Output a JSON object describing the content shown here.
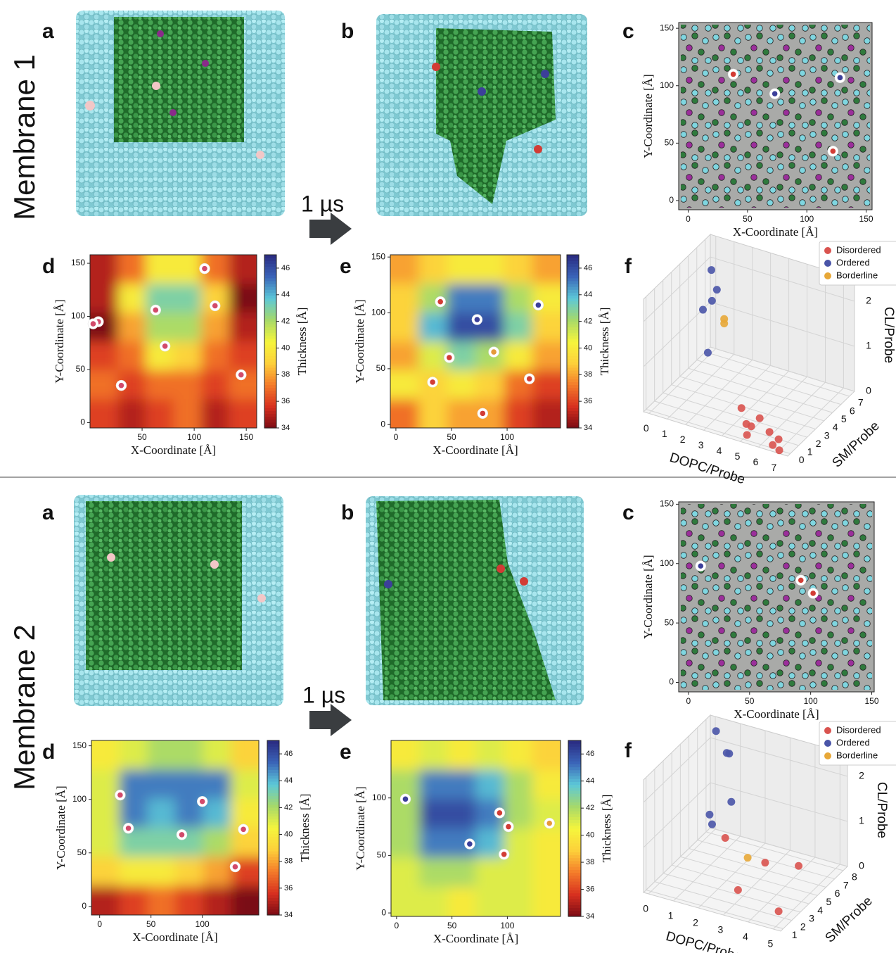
{
  "membranes": [
    {
      "label": "Membrane 1",
      "arrow_label": "1 µs",
      "panel_a": "a",
      "panel_b": "b"
    },
    {
      "label": "Membrane 2",
      "arrow_label": "1 µs",
      "panel_a": "a",
      "panel_b": "b"
    }
  ],
  "chart_data": [
    {
      "type": "scatter",
      "panel": "c",
      "xlabel": "X-Coordinate [Å]",
      "ylabel": "Y-Coordinate [Å]",
      "xlim": [
        -8,
        155
      ],
      "ylim": [
        -8,
        155
      ],
      "xticks": [
        0,
        50,
        100,
        150
      ],
      "yticks": [
        0,
        50,
        100,
        150
      ],
      "series": [
        {
          "color": "#d23c35",
          "x": [
            38,
            122
          ],
          "y": [
            110,
            43
          ]
        },
        {
          "color": "#3c3f9a",
          "x": [
            73,
            128
          ],
          "y": [
            93,
            107
          ]
        }
      ]
    },
    {
      "type": "contour",
      "panel": "d",
      "xlabel": "X-Coordinate [Å]",
      "ylabel": "Y-Coordinate [Å]",
      "xlim": [
        0,
        160
      ],
      "ylim": [
        -5,
        158
      ],
      "xticks": [
        50,
        100,
        150
      ],
      "yticks": [
        0,
        50,
        100,
        150
      ],
      "colorbar_label": "Thickness [Å]",
      "clim": [
        34,
        47
      ],
      "cticks": [
        34,
        36,
        38,
        40,
        42,
        44,
        46
      ],
      "colormap": [
        "#7a0a14",
        "#d7301f",
        "#f47b2a",
        "#fdd03a",
        "#f5f53c",
        "#a6d96a",
        "#5cc8d8",
        "#3a64b8",
        "#2a2a80"
      ],
      "grid": [
        [
          35,
          37,
          40,
          40,
          37,
          35
        ],
        [
          35,
          40,
          43,
          43,
          39,
          34
        ],
        [
          34,
          38,
          42,
          42,
          38,
          35
        ],
        [
          36,
          37,
          40,
          39,
          37,
          36
        ],
        [
          37,
          36,
          37,
          37,
          36,
          37
        ],
        [
          36,
          35,
          36,
          37,
          35,
          36
        ]
      ],
      "series": [
        {
          "color": "#d24a6a",
          "x": [
            63,
            110,
            120,
            8,
            3,
            72,
            30,
            145
          ],
          "y": [
            106,
            145,
            110,
            95,
            93,
            72,
            35,
            45
          ]
        }
      ]
    },
    {
      "type": "contour",
      "panel": "e",
      "xlabel": "X-Coordinate [Å]",
      "ylabel": "Y-Coordinate [Å]",
      "xlim": [
        -5,
        148
      ],
      "ylim": [
        -3,
        152
      ],
      "xticks": [
        0,
        50,
        100
      ],
      "yticks": [
        0,
        50,
        100,
        150
      ],
      "colorbar_label": "Thickness [Å]",
      "clim": [
        34,
        47
      ],
      "cticks": [
        34,
        36,
        38,
        40,
        42,
        44,
        46
      ],
      "colormap": [
        "#7a0a14",
        "#d7301f",
        "#f47b2a",
        "#fdd03a",
        "#f5f53c",
        "#a6d96a",
        "#5cc8d8",
        "#3a64b8",
        "#2a2a80"
      ],
      "grid": [
        [
          38,
          39,
          40,
          40,
          39,
          38
        ],
        [
          39,
          42,
          45,
          45,
          42,
          40
        ],
        [
          39,
          44,
          46,
          46,
          43,
          39
        ],
        [
          38,
          41,
          43,
          42,
          40,
          38
        ],
        [
          40,
          39,
          40,
          39,
          37,
          36
        ],
        [
          37,
          39,
          38,
          38,
          36,
          35
        ]
      ],
      "series": [
        {
          "color": "#d23c35",
          "x": [
            40,
            48,
            33,
            78,
            120
          ],
          "y": [
            110,
            60,
            38,
            10,
            41
          ]
        },
        {
          "color": "#3c3f9a",
          "x": [
            73,
            128
          ],
          "y": [
            94,
            107
          ]
        },
        {
          "color": "#e59a3a",
          "x": [
            88
          ],
          "y": [
            65
          ]
        }
      ]
    },
    {
      "type": "scatter3d",
      "panel": "f",
      "xlabel": "DOPC/Probe",
      "ylabel": "SM/Probe",
      "zlabel": "CL/Probe",
      "xlim": [
        -0.3,
        7.6
      ],
      "ylim": [
        -0.3,
        7.6
      ],
      "zlim": [
        0,
        2.5
      ],
      "xticks": [
        0,
        1,
        2,
        3,
        4,
        5,
        6,
        7
      ],
      "yticks": [
        0,
        1,
        2,
        3,
        4,
        5,
        6,
        7
      ],
      "zticks": [
        0,
        1,
        2
      ],
      "series": [
        {
          "name": "Disordered",
          "color": "#d9534f",
          "x": [
            4,
            5,
            5,
            4.5,
            5,
            6,
            6.5,
            7,
            6.5
          ],
          "y": [
            2,
            2,
            1,
            1.5,
            0.5,
            1,
            1,
            0,
            0.3
          ],
          "z": [
            0.2,
            0.1,
            0.1,
            0,
            0,
            0.1,
            0,
            0,
            0
          ]
        },
        {
          "name": "Ordered",
          "color": "#4a55a8",
          "x": [
            0.5,
            0.3,
            0.5,
            0.8,
            1
          ],
          "y": [
            6,
            6.5,
            5,
            6,
            4.5
          ],
          "z": [
            2.1,
            1.3,
            1.4,
            1.7,
            0.6
          ]
        },
        {
          "name": "Borderline",
          "color": "#e8a838",
          "x": [
            1.2,
            1.2
          ],
          "y": [
            6,
            6
          ],
          "z": [
            1.0,
            1.1
          ]
        }
      ]
    },
    {
      "type": "scatter",
      "panel": "c",
      "xlabel": "X-Coordinate [Å]",
      "ylabel": "Y-Coordinate [Å]",
      "xlim": [
        -8,
        152
      ],
      "ylim": [
        -8,
        152
      ],
      "xticks": [
        0,
        50,
        100,
        150
      ],
      "yticks": [
        0,
        50,
        100,
        150
      ],
      "series": [
        {
          "color": "#3c3f9a",
          "x": [
            10
          ],
          "y": [
            98
          ]
        },
        {
          "color": "#d23c35",
          "x": [
            92,
            102
          ],
          "y": [
            86,
            75
          ]
        }
      ]
    },
    {
      "type": "contour",
      "panel": "d",
      "xlabel": "X-Coordinate [Å]",
      "ylabel": "Y-Coordinate [Å]",
      "xlim": [
        -8,
        155
      ],
      "ylim": [
        -8,
        155
      ],
      "xticks": [
        0,
        50,
        100
      ],
      "yticks": [
        0,
        50,
        100,
        150
      ],
      "colorbar_label": "Thickness [Å]",
      "clim": [
        34,
        47
      ],
      "cticks": [
        34,
        36,
        38,
        40,
        42,
        44,
        46
      ],
      "colormap": [
        "#7a0a14",
        "#d7301f",
        "#f47b2a",
        "#fdd03a",
        "#f5f53c",
        "#a6d96a",
        "#5cc8d8",
        "#3a64b8",
        "#2a2a80"
      ],
      "grid": [
        [
          40,
          41,
          42,
          42,
          41,
          39
        ],
        [
          41,
          45,
          45,
          45,
          45,
          41
        ],
        [
          41,
          45,
          44,
          45,
          44,
          40
        ],
        [
          41,
          43,
          43,
          43,
          42,
          39
        ],
        [
          39,
          40,
          40,
          39,
          38,
          36
        ],
        [
          35,
          36,
          37,
          36,
          35,
          34
        ]
      ],
      "series": [
        {
          "color": "#d24a6a",
          "x": [
            20,
            28,
            100,
            80,
            140,
            132
          ],
          "y": [
            104,
            73,
            98,
            67,
            72,
            37
          ]
        }
      ]
    },
    {
      "type": "contour",
      "panel": "e",
      "xlabel": "X-Coordinate [Å]",
      "ylabel": "Y-Coordinate [Å]",
      "xlim": [
        -5,
        148
      ],
      "ylim": [
        -3,
        150
      ],
      "xticks": [
        0,
        50,
        100
      ],
      "yticks": [
        0,
        50,
        100
      ],
      "colorbar_label": "Thickness [Å]",
      "clim": [
        34,
        47
      ],
      "cticks": [
        34,
        36,
        38,
        40,
        42,
        44,
        46
      ],
      "colormap": [
        "#7a0a14",
        "#d7301f",
        "#f47b2a",
        "#fdd03a",
        "#f5f53c",
        "#a6d96a",
        "#5cc8d8",
        "#3a64b8",
        "#2a2a80"
      ],
      "grid": [
        [
          40,
          41,
          40,
          41,
          40,
          39
        ],
        [
          42,
          45,
          45,
          44,
          42,
          40
        ],
        [
          42,
          46,
          46,
          45,
          42,
          41
        ],
        [
          42,
          45,
          45,
          44,
          41,
          40
        ],
        [
          41,
          42,
          42,
          41,
          41,
          40
        ],
        [
          41,
          41,
          40,
          41,
          41,
          40
        ]
      ],
      "series": [
        {
          "color": "#3c3f9a",
          "x": [
            8,
            66
          ],
          "y": [
            99,
            60
          ]
        },
        {
          "color": "#d23c35",
          "x": [
            93,
            101,
            97
          ],
          "y": [
            87,
            75,
            51
          ]
        },
        {
          "color": "#e59a3a",
          "x": [
            138
          ],
          "y": [
            78
          ]
        }
      ]
    },
    {
      "type": "scatter3d",
      "panel": "f",
      "xlabel": "DOPC/Probe",
      "ylabel": "SM/Probe",
      "zlabel": "CL/Probe",
      "xlim": [
        -0.2,
        5.3
      ],
      "ylim": [
        0.7,
        8.5
      ],
      "zlim": [
        0,
        2.5
      ],
      "xticks": [
        0,
        1,
        2,
        3,
        4,
        5
      ],
      "yticks": [
        1,
        2,
        3,
        4,
        5,
        6,
        7,
        8
      ],
      "zticks": [
        0,
        1,
        2
      ],
      "series": [
        {
          "name": "Disordered",
          "color": "#d9534f",
          "x": [
            1.6,
            3.2,
            4.2,
            2.8,
            4.6
          ],
          "y": [
            5,
            5,
            6,
            3,
            2.5
          ],
          "z": [
            0.7,
            0.4,
            0.3,
            0.1,
            0
          ]
        },
        {
          "name": "Ordered",
          "color": "#4a55a8",
          "x": [
            0.2,
            0.8,
            0.9,
            1.5,
            0.8,
            0.9
          ],
          "y": [
            8,
            7.5,
            7.5,
            6,
            5.5,
            5.5
          ],
          "z": [
            2.3,
            2.0,
            2.0,
            1.3,
            1.0,
            0.8
          ]
        },
        {
          "name": "Borderline",
          "color": "#e8a838",
          "x": [
            2.5
          ],
          "y": [
            5
          ],
          "z": [
            0.4
          ]
        }
      ]
    }
  ]
}
